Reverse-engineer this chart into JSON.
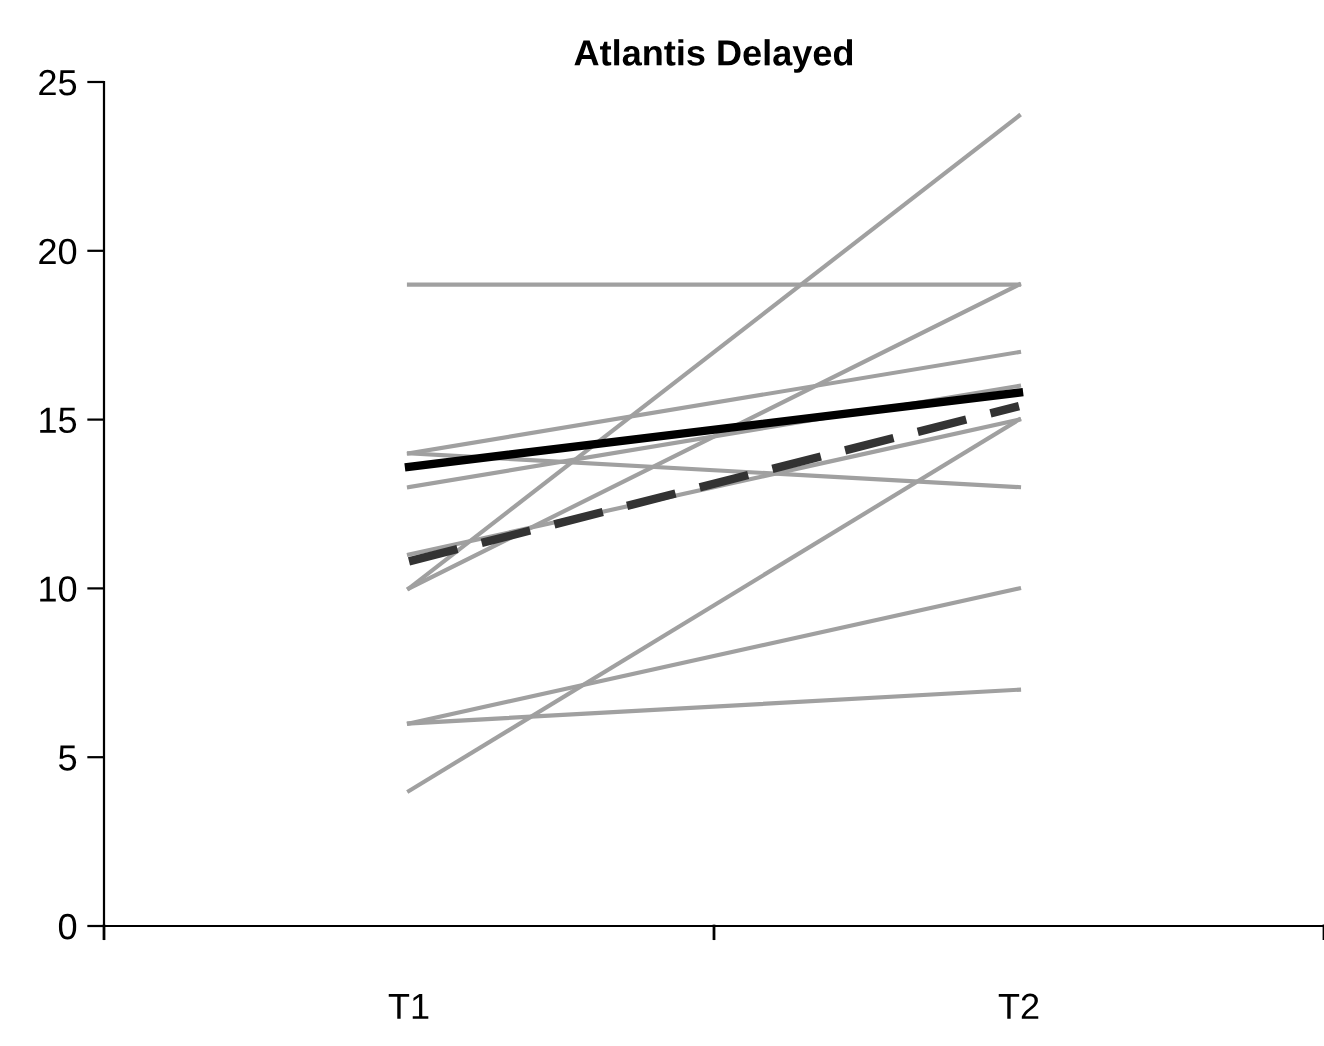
{
  "chart_data": {
    "type": "line",
    "title": "Atlantis Delayed",
    "categories": [
      "T1",
      "T2"
    ],
    "series": [
      {
        "color": "#a0a0a0",
        "values": [
          19,
          19
        ]
      },
      {
        "color": "#a0a0a0",
        "values": [
          10,
          24
        ]
      },
      {
        "color": "#a0a0a0",
        "values": [
          10,
          19
        ]
      },
      {
        "color": "#a0a0a0",
        "values": [
          14,
          17
        ]
      },
      {
        "color": "#a0a0a0",
        "values": [
          13,
          16
        ]
      },
      {
        "color": "#a0a0a0",
        "values": [
          11,
          15
        ]
      },
      {
        "color": "#a0a0a0",
        "values": [
          4,
          15
        ]
      },
      {
        "color": "#a0a0a0",
        "values": [
          14,
          13
        ]
      },
      {
        "color": "#a0a0a0",
        "values": [
          6,
          10
        ]
      },
      {
        "color": "#a0a0a0",
        "values": [
          6,
          7
        ]
      },
      {
        "color": "#000000",
        "values": [
          13.6,
          15.8
        ]
      },
      {
        "color": "#333333",
        "values": [
          10.8,
          15.4
        ],
        "line_style": "dashed"
      }
    ],
    "ylim": [
      0,
      25
    ],
    "yticks": [
      0,
      5,
      10,
      15,
      20,
      25
    ],
    "grid": false,
    "legend": false,
    "marker": "none"
  }
}
